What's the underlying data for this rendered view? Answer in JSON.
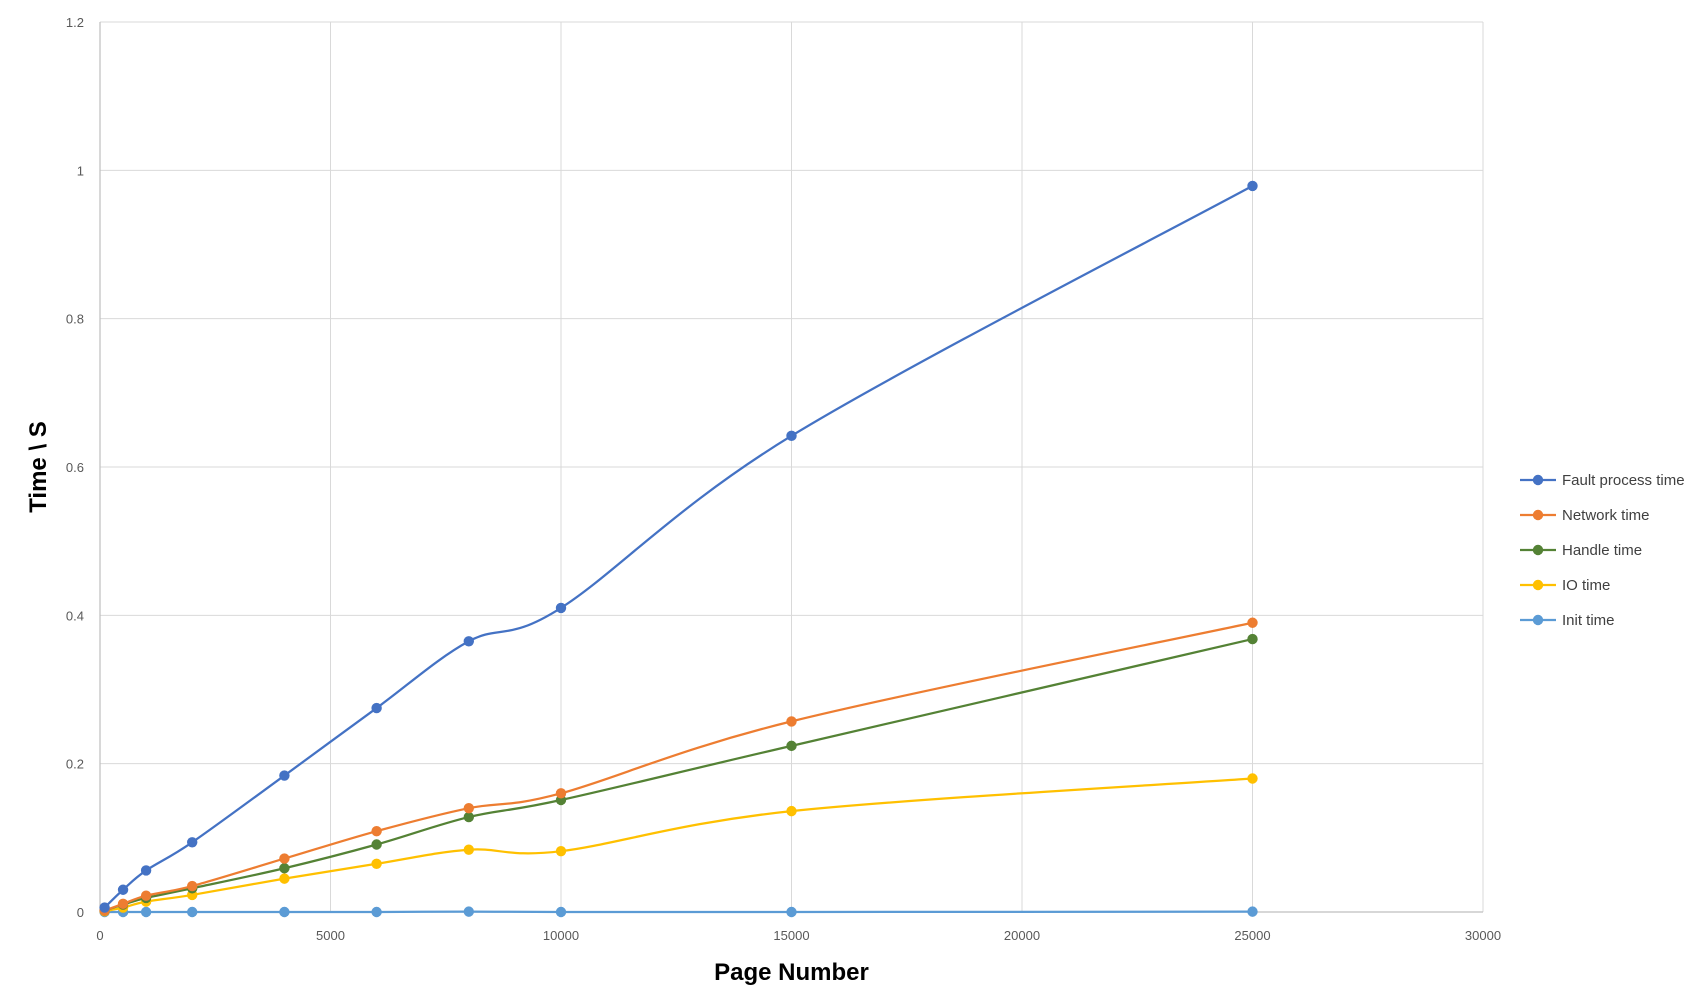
{
  "chart_data": {
    "type": "line",
    "title": "",
    "xlabel": "Page Number",
    "ylabel": "Time \\ S",
    "xlim": [
      0,
      30000
    ],
    "ylim": [
      0,
      1.2
    ],
    "x_ticks": [
      0,
      5000,
      10000,
      15000,
      20000,
      25000,
      30000
    ],
    "y_ticks": [
      0,
      0.2,
      0.4,
      0.6,
      0.8,
      1,
      1.2
    ],
    "x_tick_labels": [
      "0",
      "5000",
      "10000",
      "15000",
      "20000",
      "25000",
      "30000"
    ],
    "y_tick_labels": [
      "0",
      "0.2",
      "0.4",
      "0.6",
      "0.8",
      "1",
      "1.2"
    ],
    "grid": true,
    "smooth": true,
    "legend_position": "right",
    "x": [
      100,
      500,
      1000,
      2000,
      4000,
      6000,
      8000,
      10000,
      15000,
      25000
    ],
    "series": [
      {
        "name": "Fault process time",
        "color": "#4472C4",
        "values": [
          0.006,
          0.03,
          0.056,
          0.094,
          0.184,
          0.275,
          0.365,
          0.41,
          0.642,
          0.979
        ]
      },
      {
        "name": "Network time",
        "color": "#ED7D31",
        "values": [
          0.002,
          0.011,
          0.022,
          0.035,
          0.072,
          0.109,
          0.14,
          0.16,
          0.257,
          0.39
        ]
      },
      {
        "name": "Handle time",
        "color": "#548235",
        "values": [
          0.002,
          0.01,
          0.019,
          0.032,
          0.059,
          0.091,
          0.128,
          0.151,
          0.224,
          0.368
        ]
      },
      {
        "name": "IO time",
        "color": "#FFC000",
        "values": [
          0.001,
          0.006,
          0.014,
          0.023,
          0.045,
          0.065,
          0.084,
          0.082,
          0.136,
          0.18
        ]
      },
      {
        "name": "Init time",
        "color": "#5B9BD5",
        "values": [
          0.0,
          0.0,
          0.0,
          0.0,
          0.0,
          0.0,
          0.0005,
          0.0,
          0.0,
          0.0005
        ]
      }
    ]
  },
  "colors": {
    "grid": "#D9D9D9",
    "axis": "#BFBFBF",
    "tick_text": "#595959"
  }
}
